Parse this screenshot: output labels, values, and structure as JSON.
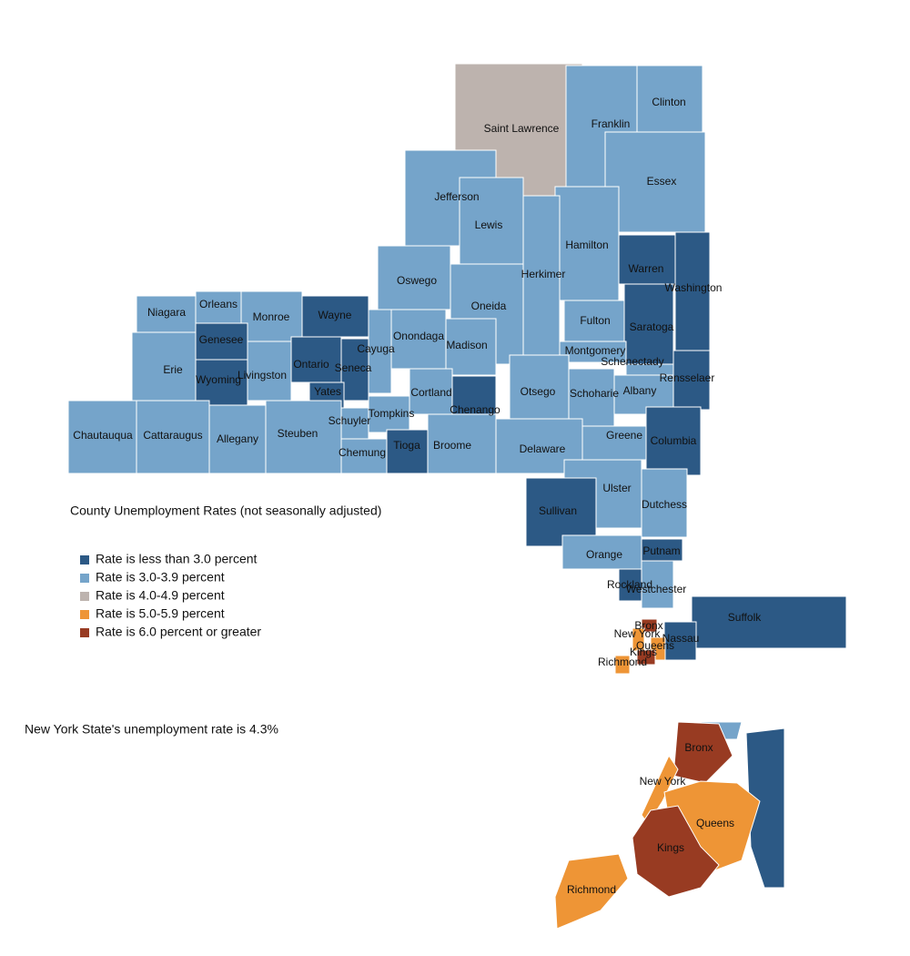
{
  "map": {
    "title": "County Unemployment Rates (not seasonally adjusted)",
    "statewide_note": "New York State's unemployment rate is 4.3%",
    "legend": [
      {
        "label": "Rate is less than 3.0 percent",
        "color": "#2c5985"
      },
      {
        "label": "Rate is 3.0-3.9 percent",
        "color": "#75a4ca"
      },
      {
        "label": "Rate is 4.0-4.9 percent",
        "color": "#bdb3ae"
      },
      {
        "label": "Rate is 5.0-5.9 percent",
        "color": "#ee9536"
      },
      {
        "label": "Rate is 6.0 percent or greater",
        "color": "#983b22"
      }
    ],
    "counties": [
      {
        "name": "Saint Lawrence",
        "rate_class": 2
      },
      {
        "name": "Franklin",
        "rate_class": 1
      },
      {
        "name": "Clinton",
        "rate_class": 1
      },
      {
        "name": "Essex",
        "rate_class": 1
      },
      {
        "name": "Jefferson",
        "rate_class": 1
      },
      {
        "name": "Lewis",
        "rate_class": 1
      },
      {
        "name": "Hamilton",
        "rate_class": 1
      },
      {
        "name": "Herkimer",
        "rate_class": 1
      },
      {
        "name": "Warren",
        "rate_class": 0
      },
      {
        "name": "Washington",
        "rate_class": 0
      },
      {
        "name": "Oswego",
        "rate_class": 1
      },
      {
        "name": "Oneida",
        "rate_class": 1
      },
      {
        "name": "Fulton",
        "rate_class": 1
      },
      {
        "name": "Saratoga",
        "rate_class": 0
      },
      {
        "name": "Niagara",
        "rate_class": 1
      },
      {
        "name": "Orleans",
        "rate_class": 1
      },
      {
        "name": "Monroe",
        "rate_class": 1
      },
      {
        "name": "Wayne",
        "rate_class": 0
      },
      {
        "name": "Genesee",
        "rate_class": 0
      },
      {
        "name": "Erie",
        "rate_class": 1
      },
      {
        "name": "Wyoming",
        "rate_class": 0
      },
      {
        "name": "Livingston",
        "rate_class": 1
      },
      {
        "name": "Ontario",
        "rate_class": 0
      },
      {
        "name": "Seneca",
        "rate_class": 0
      },
      {
        "name": "Cayuga",
        "rate_class": 1
      },
      {
        "name": "Onondaga",
        "rate_class": 1
      },
      {
        "name": "Madison",
        "rate_class": 1
      },
      {
        "name": "Montgomery",
        "rate_class": 1
      },
      {
        "name": "Schenectady",
        "rate_class": 1
      },
      {
        "name": "Rensselaer",
        "rate_class": 0
      },
      {
        "name": "Yates",
        "rate_class": 0
      },
      {
        "name": "Cortland",
        "rate_class": 1
      },
      {
        "name": "Otsego",
        "rate_class": 1
      },
      {
        "name": "Schoharie",
        "rate_class": 1
      },
      {
        "name": "Albany",
        "rate_class": 1
      },
      {
        "name": "Chenango",
        "rate_class": 0
      },
      {
        "name": "Tompkins",
        "rate_class": 1
      },
      {
        "name": "Schuyler",
        "rate_class": 1
      },
      {
        "name": "Chautauqua",
        "rate_class": 1
      },
      {
        "name": "Cattaraugus",
        "rate_class": 1
      },
      {
        "name": "Allegany",
        "rate_class": 1
      },
      {
        "name": "Steuben",
        "rate_class": 1
      },
      {
        "name": "Chemung",
        "rate_class": 1
      },
      {
        "name": "Tioga",
        "rate_class": 0
      },
      {
        "name": "Broome",
        "rate_class": 1
      },
      {
        "name": "Delaware",
        "rate_class": 1
      },
      {
        "name": "Greene",
        "rate_class": 1
      },
      {
        "name": "Columbia",
        "rate_class": 0
      },
      {
        "name": "Ulster",
        "rate_class": 1
      },
      {
        "name": "Dutchess",
        "rate_class": 1
      },
      {
        "name": "Sullivan",
        "rate_class": 0
      },
      {
        "name": "Orange",
        "rate_class": 1
      },
      {
        "name": "Putnam",
        "rate_class": 0
      },
      {
        "name": "Rockland",
        "rate_class": 0
      },
      {
        "name": "Westchester",
        "rate_class": 1
      },
      {
        "name": "Suffolk",
        "rate_class": 0
      },
      {
        "name": "Nassau",
        "rate_class": 0
      },
      {
        "name": "Bronx",
        "rate_class": 4
      },
      {
        "name": "New York",
        "rate_class": 3
      },
      {
        "name": "Queens",
        "rate_class": 3
      },
      {
        "name": "Kings",
        "rate_class": 4
      },
      {
        "name": "Richmond",
        "rate_class": 3
      }
    ]
  }
}
